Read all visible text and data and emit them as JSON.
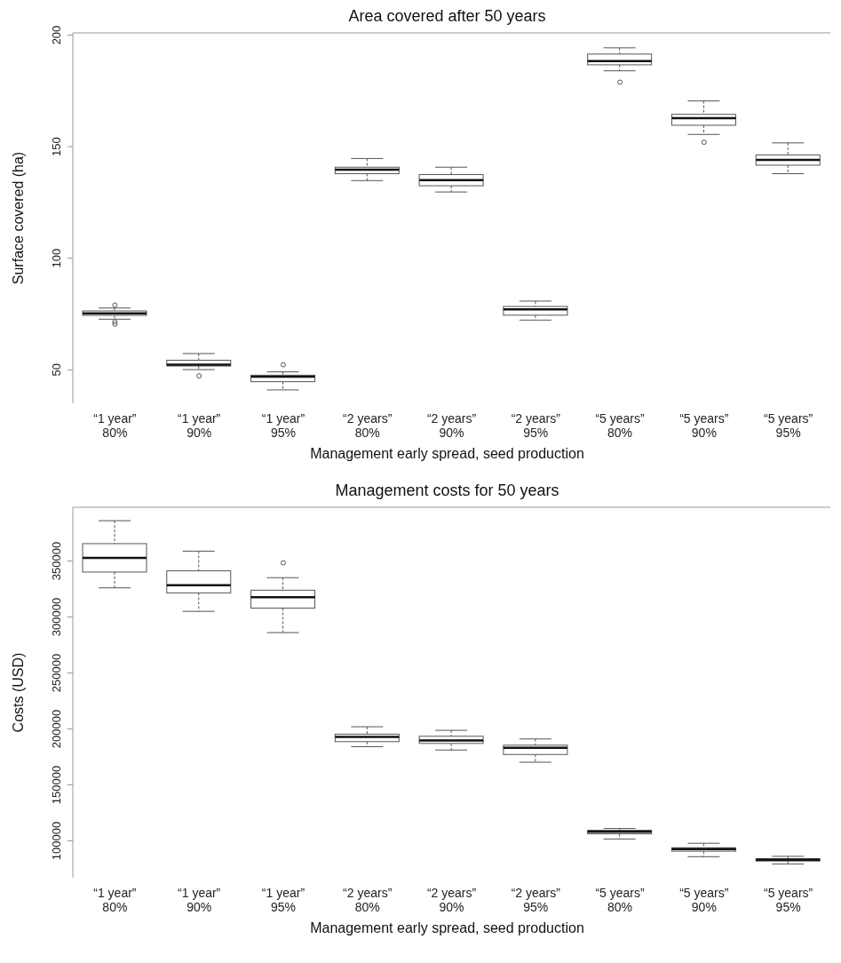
{
  "chart_data": [
    {
      "type": "box",
      "title": "Area covered after 50 years",
      "xlabel": "Management early spread, seed production",
      "ylabel": "Surface covered (ha)",
      "categories": [
        "“1 year” 80%",
        "“1 year” 90%",
        "“1 year” 95%",
        "“2 years” 80%",
        "“2 years” 90%",
        "“2 years” 95%",
        "“5 years” 80%",
        "“5 years” 90%",
        "“5 years” 95%"
      ],
      "ylim": [
        35,
        201
      ],
      "yticks": [
        50,
        100,
        150,
        200
      ],
      "boxes": [
        {
          "low": 72.7,
          "q1": 74.4,
          "median": 75.3,
          "q3": 76.4,
          "high": 77.7,
          "outliers": [
            79,
            71.5,
            70.5
          ]
        },
        {
          "low": 50.1,
          "q1": 51.7,
          "median": 52.3,
          "q3": 54.3,
          "high": 57.3,
          "outliers": [
            47.3
          ]
        },
        {
          "low": 41,
          "q1": 44.7,
          "median": 46.9,
          "q3": 47.6,
          "high": 49.1,
          "outliers": [
            52.3
          ]
        },
        {
          "low": 134.8,
          "q1": 137.9,
          "median": 139.7,
          "q3": 140.8,
          "high": 144.7
        },
        {
          "low": 129.7,
          "q1": 132.5,
          "median": 135,
          "q3": 137.5,
          "high": 140.8
        },
        {
          "low": 72.3,
          "q1": 74.5,
          "median": 77.1,
          "q3": 78.4,
          "high": 80.8
        },
        {
          "low": 184,
          "q1": 186.7,
          "median": 188.4,
          "q3": 191.5,
          "high": 194.3,
          "outliers": [
            178.9
          ]
        },
        {
          "low": 155.5,
          "q1": 159.6,
          "median": 162.8,
          "q3": 164.5,
          "high": 170.5,
          "outliers": [
            152
          ]
        },
        {
          "low": 137.9,
          "q1": 141.7,
          "median": 144.1,
          "q3": 146.3,
          "high": 151.7
        }
      ]
    },
    {
      "type": "box",
      "title": "Management costs for 50 years",
      "xlabel": "Management early spread, seed production",
      "ylabel": "Costs (USD)",
      "categories": [
        "“1 year” 80%",
        "“1 year” 90%",
        "“1 year” 95%",
        "“2 years” 80%",
        "“2 years” 90%",
        "“2 years” 95%",
        "“5 years” 80%",
        "“5 years” 90%",
        "“5 years” 95%"
      ],
      "ylim": [
        67000,
        398000
      ],
      "yticks": [
        100000,
        150000,
        200000,
        250000,
        300000,
        350000
      ],
      "boxes": [
        {
          "low": 326000,
          "q1": 340100,
          "median": 352700,
          "q3": 365500,
          "high": 386000
        },
        {
          "low": 305000,
          "q1": 321500,
          "median": 328400,
          "q3": 341200,
          "high": 358800
        },
        {
          "low": 286000,
          "q1": 307900,
          "median": 317700,
          "q3": 323900,
          "high": 335100,
          "outliers": [
            348400
          ]
        },
        {
          "low": 184100,
          "q1": 188600,
          "median": 192900,
          "q3": 195300,
          "high": 201900
        },
        {
          "low": 181100,
          "q1": 187000,
          "median": 189700,
          "q3": 193400,
          "high": 198700
        },
        {
          "low": 170200,
          "q1": 177100,
          "median": 183000,
          "q3": 185400,
          "high": 191000
        },
        {
          "low": 101600,
          "q1": 106200,
          "median": 108000,
          "q3": 109400,
          "high": 111000
        },
        {
          "low": 85800,
          "q1": 90700,
          "median": 92600,
          "q3": 93800,
          "high": 97800
        },
        {
          "low": 79200,
          "q1": 81900,
          "median": 83000,
          "q3": 84000,
          "high": 86100
        }
      ]
    }
  ]
}
